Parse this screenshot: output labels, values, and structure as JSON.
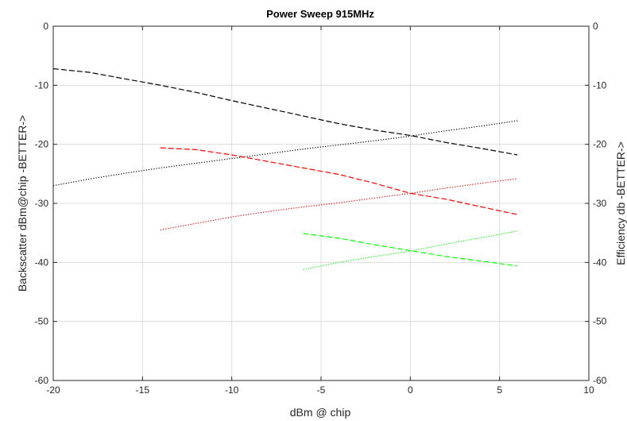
{
  "chart_data": {
    "type": "line",
    "title": "Power Sweep 915MHz",
    "xlabel": "dBm @ chip",
    "ylabel_left": "Backscatter dBm@chip -BETTER->",
    "ylabel_right": "Efficiency db -BETTER->",
    "xlim": [
      -20,
      10
    ],
    "ylim": [
      -60,
      0
    ],
    "xticks": [
      -20,
      -15,
      -10,
      -5,
      0,
      5,
      10
    ],
    "yticks": [
      0,
      -10,
      -20,
      -30,
      -40,
      -50,
      -60
    ],
    "grid": true,
    "series": [
      {
        "color": "#000000",
        "style": "dashed",
        "x": [
          -20,
          -18,
          -16,
          -14,
          -12,
          -10,
          -8,
          -6,
          -4,
          -2,
          0,
          2,
          4,
          6
        ],
        "y": [
          -7.2,
          -7.8,
          -8.9,
          -10.0,
          -11.2,
          -12.6,
          -13.9,
          -15.2,
          -16.5,
          -17.6,
          -18.5,
          -19.7,
          -20.7,
          -21.8
        ]
      },
      {
        "color": "#000000",
        "style": "dotted",
        "x": [
          -20,
          -18,
          -16,
          -14,
          -12,
          -10,
          -8,
          -6,
          -4,
          -2,
          0,
          2,
          4,
          6
        ],
        "y": [
          -27.0,
          -25.9,
          -24.9,
          -24.0,
          -23.2,
          -22.4,
          -21.6,
          -20.8,
          -20.1,
          -19.4,
          -18.6,
          -17.7,
          -16.9,
          -16.0
        ]
      },
      {
        "color": "#ff0000",
        "style": "dashed",
        "x": [
          -14,
          -12,
          -10,
          -8,
          -6,
          -4,
          -2,
          0,
          2,
          4,
          6
        ],
        "y": [
          -20.6,
          -20.9,
          -21.8,
          -22.9,
          -24.0,
          -25.1,
          -26.6,
          -28.3,
          -29.3,
          -30.6,
          -31.9
        ]
      },
      {
        "color": "#ff0000",
        "style": "dotted",
        "x": [
          -14,
          -12,
          -10,
          -8,
          -6,
          -4,
          -2,
          0,
          2,
          4,
          6
        ],
        "y": [
          -34.5,
          -33.4,
          -32.3,
          -31.4,
          -30.6,
          -29.9,
          -29.1,
          -28.3,
          -27.4,
          -26.6,
          -25.8
        ]
      },
      {
        "color": "#00ff00",
        "style": "dashed",
        "x": [
          -6,
          -4,
          -2,
          0,
          2,
          4,
          6
        ],
        "y": [
          -35.1,
          -35.9,
          -37.0,
          -38.0,
          -39.0,
          -39.8,
          -40.6
        ]
      },
      {
        "color": "#00ff00",
        "style": "dotted",
        "x": [
          -6,
          -4,
          -2,
          0,
          2,
          4,
          6
        ],
        "y": [
          -41.2,
          -40.0,
          -39.0,
          -38.1,
          -36.9,
          -35.8,
          -34.7
        ]
      }
    ]
  }
}
